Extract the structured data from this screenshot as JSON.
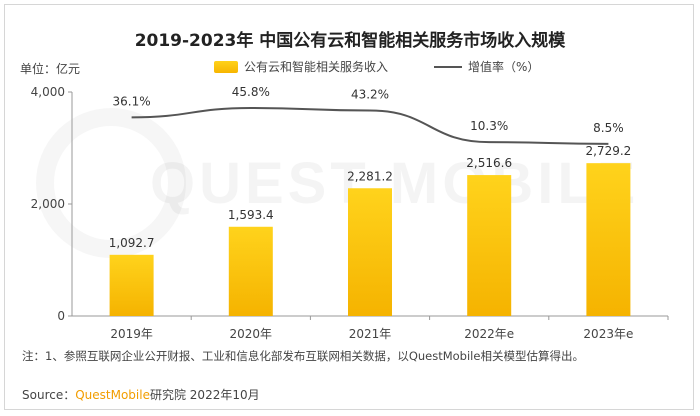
{
  "chart_data": {
    "type": "bar",
    "title": "2019-2023年 中国公有云和智能相关服务市场收入规模",
    "unit_label": "单位：亿元",
    "categories": [
      "2019年",
      "2020年",
      "2021年",
      "2022年e",
      "2023年e"
    ],
    "series": [
      {
        "name": "公有云和智能相关服务收入",
        "type": "bar",
        "values": [
          1092.7,
          1593.4,
          2281.2,
          2516.6,
          2729.2
        ],
        "color": "#f7b500"
      },
      {
        "name": "增值率（%）",
        "type": "line",
        "values": [
          36.1,
          45.8,
          43.2,
          10.3,
          8.5
        ],
        "color": "#555555"
      }
    ],
    "bar_labels": [
      "1,092.7",
      "1,593.4",
      "2,281.2",
      "2,516.6",
      "2,729.2"
    ],
    "line_labels": [
      "36.1%",
      "45.8%",
      "43.2%",
      "10.3%",
      "8.5%"
    ],
    "yticks": [
      "0",
      "2,000",
      "4,000"
    ],
    "ytick_values": [
      0,
      2000,
      4000
    ],
    "ylim": [
      0,
      4000
    ],
    "grid": false,
    "legend_position": "top"
  },
  "note": "注：1、参照互联网企业公开财报、工业和信息化部发布互联网相关数据，以QuestMobile相关模型估算得出。",
  "source": {
    "prefix": "Source：",
    "brand": "QuestMobile",
    "suffix": "研究院 2022年10月"
  },
  "watermark": "QUEST MOBILE"
}
